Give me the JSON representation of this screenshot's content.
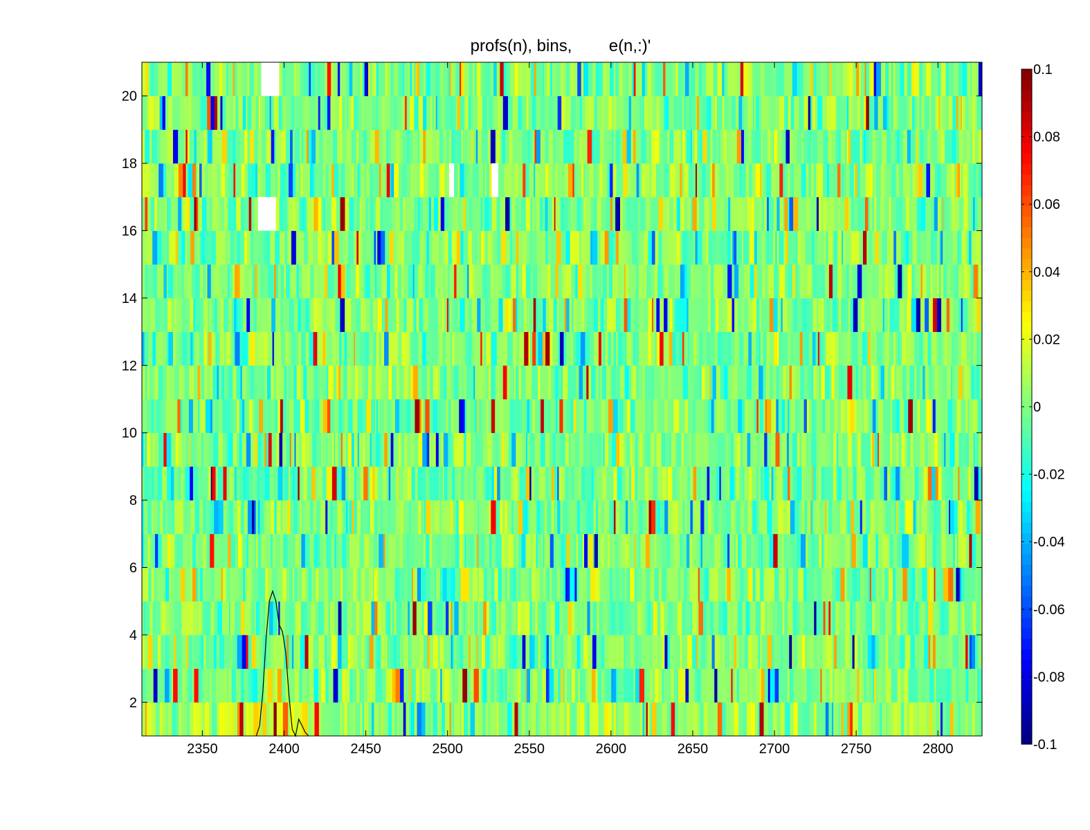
{
  "chart_data": [
    {
      "type": "heatmap",
      "title": "profs(n), bins,        e(n,:)'",
      "xlabel": "",
      "ylabel": "",
      "xlim": [
        2313,
        2827
      ],
      "ylim": [
        1,
        21
      ],
      "x_ticks": [
        2350,
        2400,
        2450,
        2500,
        2550,
        2600,
        2650,
        2700,
        2750,
        2800
      ],
      "y_ticks": [
        2,
        4,
        6,
        8,
        10,
        12,
        14,
        16,
        18,
        20
      ],
      "rows": 20,
      "row_centers": [
        1.5,
        2.5,
        3.5,
        4.5,
        5.5,
        6.5,
        7.5,
        8.5,
        9.5,
        10.5,
        11.5,
        12.5,
        13.5,
        14.5,
        15.5,
        16.5,
        17.5,
        18.5,
        19.5,
        20.5
      ],
      "colormap": "jet",
      "clim": [
        -0.1,
        0.1
      ],
      "colorbar_ticks": [
        0.1,
        0.08,
        0.06,
        0.04,
        0.02,
        0,
        -0.02,
        -0.04,
        -0.06,
        -0.08,
        -0.1
      ],
      "colorbar_tick_labels": [
        "0.1",
        "0.08",
        "0.06",
        "0.04",
        "0.02",
        "0",
        "-0.02",
        "-0.04",
        "-0.06",
        "-0.08",
        "-0.1"
      ],
      "colorbar_position": "right",
      "value_distribution": "dense per-bin values, mostly between -0.02 and 0.02; isolated bins reach about ±0.1; row 1 (bottom) skews positive between 2350-2420 and near 2750",
      "missing_regions": [
        {
          "x": [
            2386,
            2397
          ],
          "y": [
            20,
            21
          ]
        },
        {
          "x": [
            2384,
            2395
          ],
          "y": [
            16,
            17
          ]
        },
        {
          "x": [
            2501,
            2504
          ],
          "y": [
            17,
            18
          ]
        },
        {
          "x": [
            2527,
            2531
          ],
          "y": [
            17,
            18
          ]
        }
      ],
      "overlay_line": {
        "type": "line",
        "color": "#000000",
        "x": [
          2383,
          2385,
          2387,
          2389,
          2391,
          2393,
          2395,
          2397,
          2399,
          2401,
          2403,
          2405,
          2407,
          2409,
          2411,
          2413,
          2415
        ],
        "y": [
          1.0,
          1.3,
          2.3,
          3.9,
          5.0,
          5.3,
          5.0,
          4.3,
          4.1,
          3.5,
          2.2,
          1.2,
          1.0,
          1.5,
          1.3,
          1.1,
          1.0
        ]
      }
    }
  ]
}
